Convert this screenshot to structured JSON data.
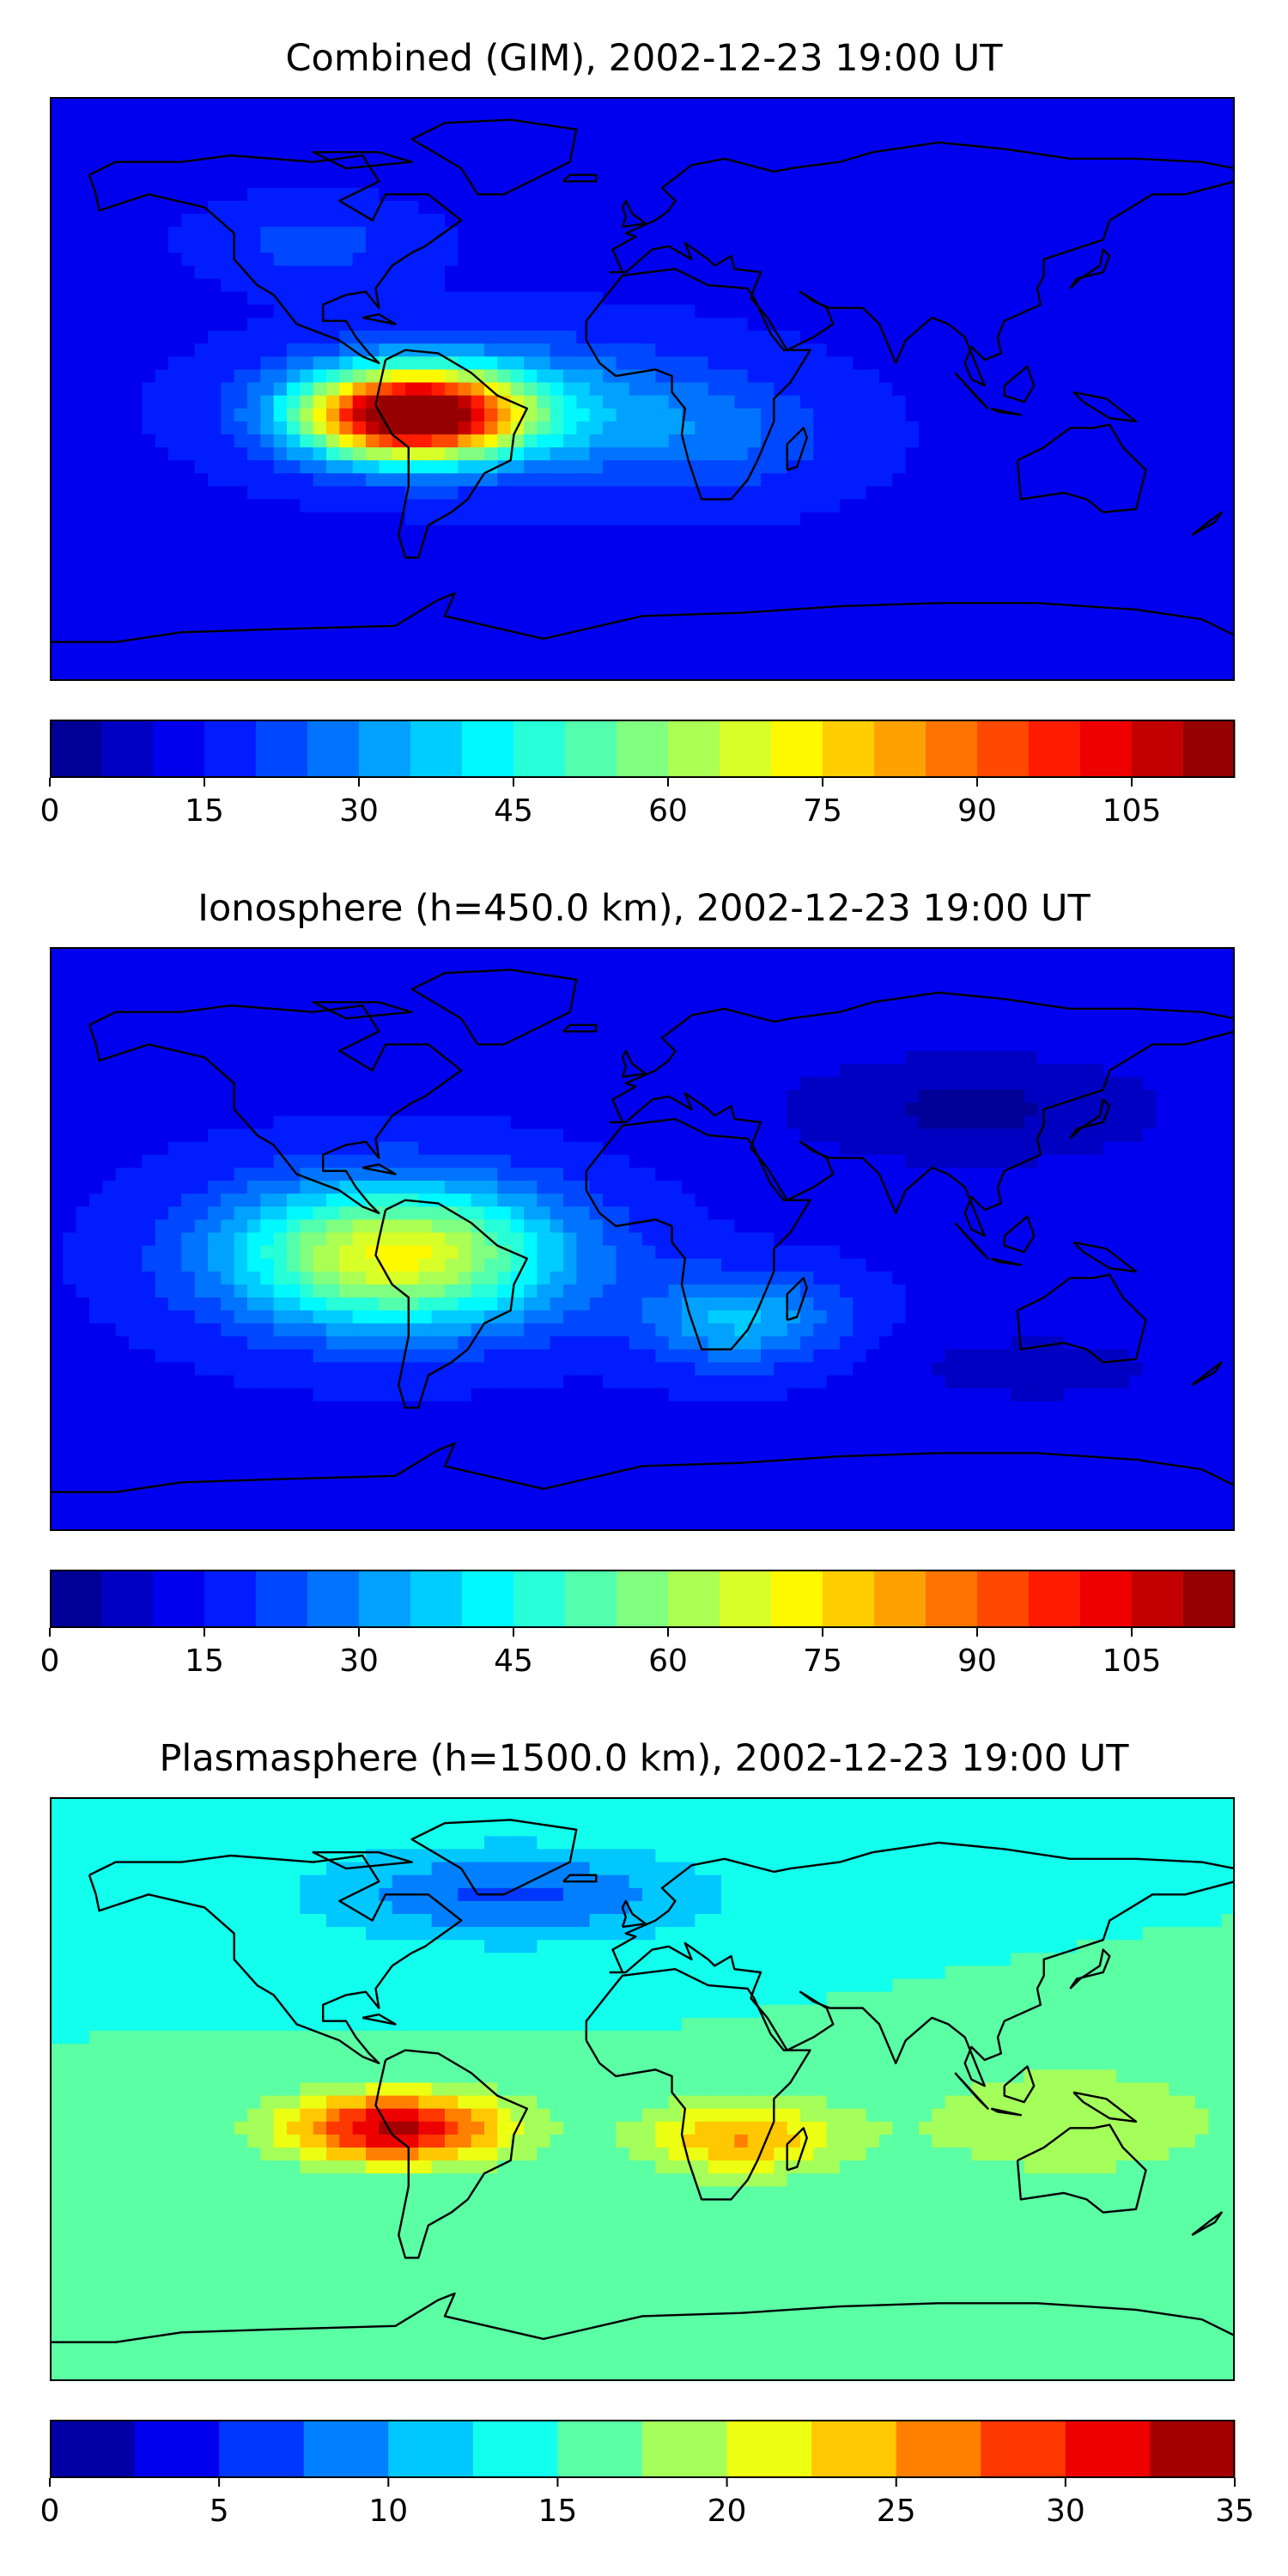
{
  "chart_data": [
    {
      "type": "heatmap",
      "title": "Combined (GIM), 2002-12-23 19:00 UT",
      "colorbar": {
        "range": [
          0,
          115
        ],
        "step": 5,
        "ticks": [
          0,
          15,
          30,
          45,
          60,
          75,
          90,
          105
        ],
        "tick_labels": [
          "0",
          "15",
          "30",
          "45",
          "60",
          "75",
          "90",
          "105"
        ]
      },
      "blobs": [
        {
          "lon": -70,
          "lat": -8,
          "value": 104,
          "spread_lon": 32,
          "spread_lat": 13
        },
        {
          "lon": -45,
          "lat": -5,
          "value": 20,
          "spread_lon": 60,
          "spread_lat": 20
        },
        {
          "lon": 20,
          "lat": -15,
          "value": 10,
          "spread_lon": 40,
          "spread_lat": 18
        },
        {
          "lon": -100,
          "lat": 45,
          "value": 8,
          "spread_lon": 30,
          "spread_lat": 12
        }
      ],
      "background": 14,
      "xlabel": "",
      "ylabel": "",
      "grid": false,
      "legend": "none"
    },
    {
      "type": "heatmap",
      "title": "Ionosphere  (h=450.0 km), 2002-12-23 19:00 UT",
      "colorbar": {
        "range": [
          0,
          115
        ],
        "step": 5,
        "ticks": [
          0,
          15,
          30,
          45,
          60,
          75,
          90,
          105
        ],
        "tick_labels": [
          "0",
          "15",
          "30",
          "45",
          "60",
          "75",
          "90",
          "105"
        ]
      },
      "blobs": [
        {
          "lon": -75,
          "lat": -5,
          "value": 58,
          "spread_lon": 50,
          "spread_lat": 22
        },
        {
          "lon": 30,
          "lat": -25,
          "value": 22,
          "spread_lon": 30,
          "spread_lat": 14
        },
        {
          "lon": 100,
          "lat": 40,
          "value": -10,
          "spread_lon": 60,
          "spread_lat": 18
        },
        {
          "lon": 120,
          "lat": -40,
          "value": -8,
          "spread_lon": 40,
          "spread_lat": 10
        }
      ],
      "background": 14,
      "xlabel": "",
      "ylabel": "",
      "grid": false,
      "legend": "none"
    },
    {
      "type": "heatmap",
      "title": "Plasmasphere (h=1500.0 km), 2002-12-23 19:00 UT",
      "colorbar": {
        "range": [
          0,
          35
        ],
        "step": 2.5,
        "ticks": [
          0,
          5,
          10,
          15,
          20,
          25,
          30,
          35
        ],
        "tick_labels": [
          "0",
          "5",
          "10",
          "15",
          "20",
          "25",
          "30",
          "35"
        ]
      },
      "blobs": [
        {
          "lon": -75,
          "lat": -12,
          "value": 18,
          "spread_lon": 34,
          "spread_lat": 11
        },
        {
          "lon": 30,
          "lat": -15,
          "value": 10,
          "spread_lon": 30,
          "spread_lat": 12
        },
        {
          "lon": 130,
          "lat": -10,
          "value": 5,
          "spread_lon": 50,
          "spread_lat": 18
        },
        {
          "lon": -40,
          "lat": 60,
          "value": -8,
          "spread_lon": 60,
          "spread_lat": 15
        }
      ],
      "background": 15,
      "xlabel": "",
      "ylabel": "",
      "grid": false,
      "legend": "none"
    }
  ]
}
